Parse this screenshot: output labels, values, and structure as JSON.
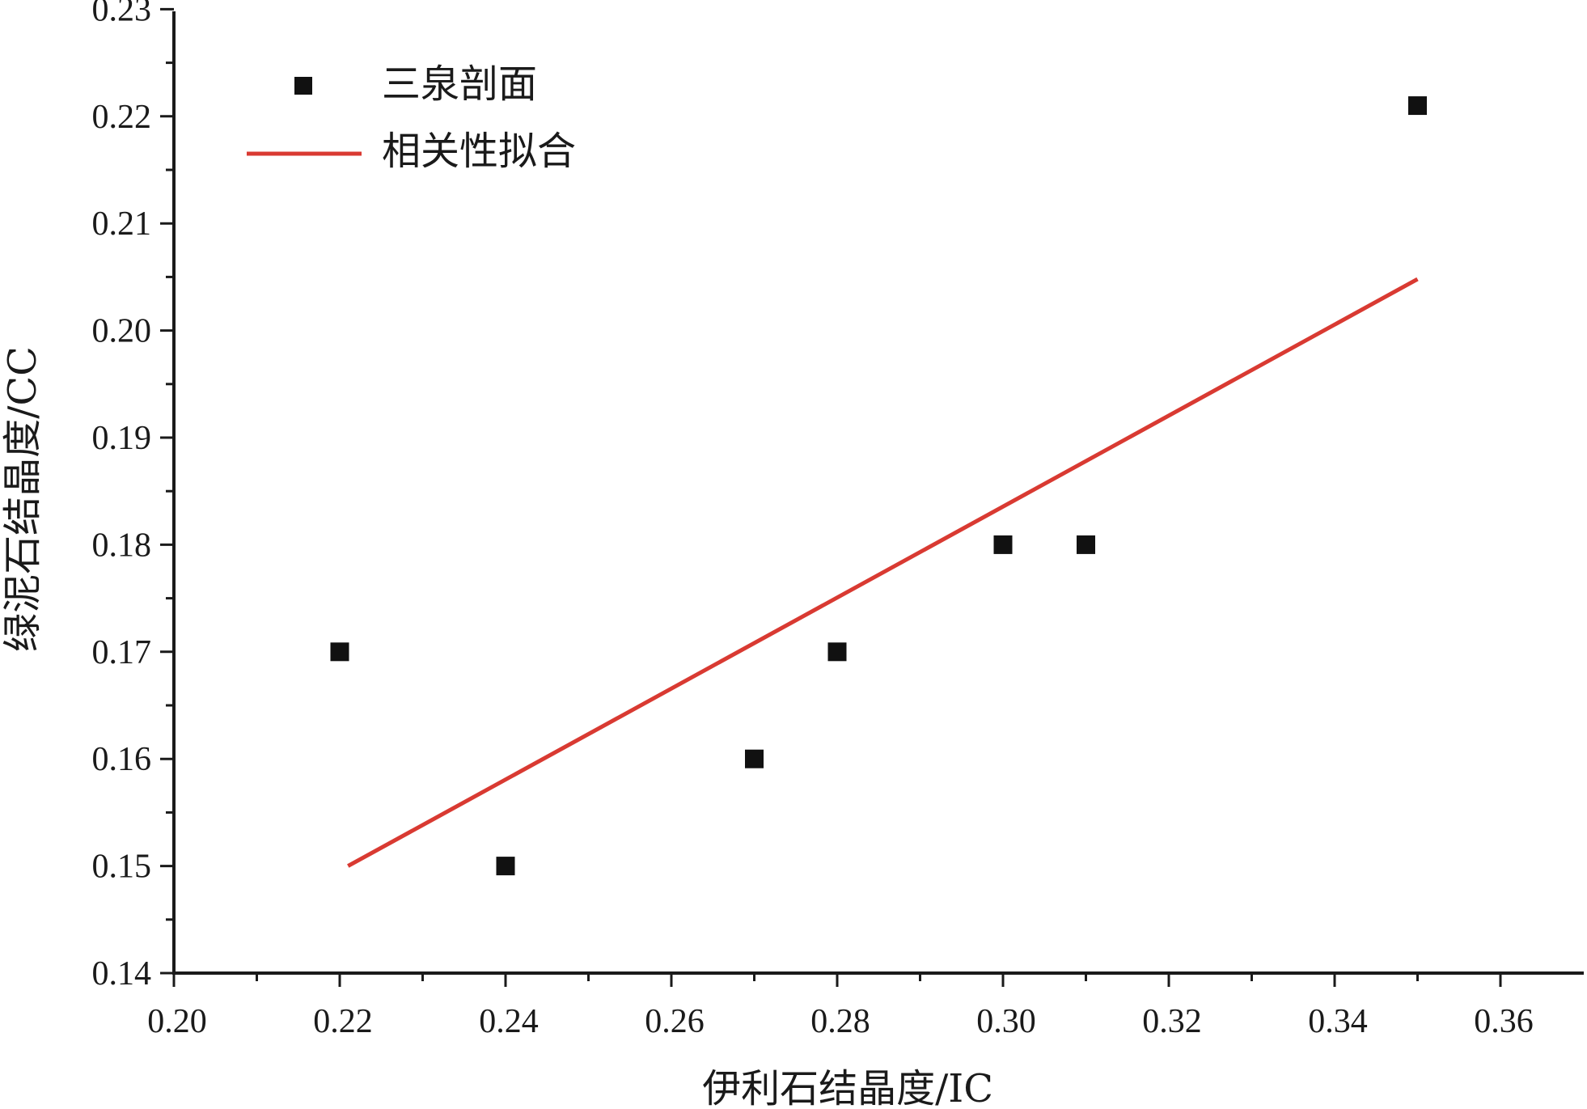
{
  "chart_data": {
    "type": "scatter",
    "xlabel": "伊利石结晶度/IC",
    "ylabel": "绿泥石结晶度/CC",
    "xlim": [
      0.2,
      0.37
    ],
    "ylim": [
      0.14,
      0.23
    ],
    "x_ticks": [
      "0.20",
      "0.22",
      "0.24",
      "0.26",
      "0.28",
      "0.30",
      "0.32",
      "0.34",
      "0.36"
    ],
    "y_ticks": [
      "0.14",
      "0.15",
      "0.16",
      "0.17",
      "0.18",
      "0.19",
      "0.20",
      "0.21",
      "0.22",
      "0.23"
    ],
    "grid": false,
    "legend_position": "top-left",
    "series": [
      {
        "name": "三泉剖面",
        "type": "scatter",
        "marker": "square",
        "color": "#111111",
        "x": [
          0.22,
          0.24,
          0.27,
          0.28,
          0.3,
          0.31,
          0.35
        ],
        "y": [
          0.17,
          0.15,
          0.16,
          0.17,
          0.18,
          0.18,
          0.221
        ]
      },
      {
        "name": "相关性拟合",
        "type": "line",
        "color": "#d93a32",
        "x": [
          0.221,
          0.35
        ],
        "y": [
          0.15,
          0.2048
        ]
      }
    ]
  }
}
